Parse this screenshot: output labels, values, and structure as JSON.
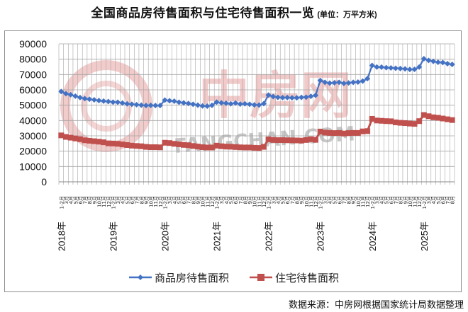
{
  "title": "全国商品房待售面积与住宅待售面积一览",
  "unit_label": "(单位：万平方米)",
  "source": "数据来源：中房网根据国家统计局数据整理",
  "watermark": {
    "cn": "中房网",
    "en": "FANGCHAN.COM"
  },
  "colors": {
    "series1": "#4472C4",
    "series2": "#C0504D",
    "grid": "#A6A6A6",
    "watermark": "#E8A0A0"
  },
  "legend": [
    {
      "label": "商品房待售面积",
      "marker": "diamond",
      "color": "#4472C4"
    },
    {
      "label": "住宅待售面积",
      "marker": "square",
      "color": "#C0504D"
    }
  ],
  "chart_data": {
    "type": "line",
    "title": "全国商品房待售面积与住宅待售面积一览",
    "subtitle": "(单位：万平方米)",
    "xlabel": "",
    "ylabel": "",
    "ylim": [
      0,
      90000
    ],
    "yticks": [
      0,
      10000,
      20000,
      30000,
      40000,
      50000,
      60000,
      70000,
      80000,
      90000
    ],
    "grid": true,
    "legend_position": "bottom",
    "year_labels": [
      "2018年",
      "2019年",
      "2020年",
      "2021年",
      "2022年",
      "2023年",
      "2024年",
      "2025年"
    ],
    "x": [
      "2018年1-2月",
      "3月",
      "4月",
      "5月",
      "6月",
      "7月",
      "8月",
      "9月",
      "10月",
      "11月",
      "12月",
      "2019年1-2月",
      "3月",
      "4月",
      "5月",
      "6月",
      "7月",
      "8月",
      "9月",
      "10月",
      "11月",
      "12月",
      "2020年1-2月",
      "3月",
      "4月",
      "5月",
      "6月",
      "7月",
      "8月",
      "9月",
      "10月",
      "11月",
      "12月",
      "2021年1-2月",
      "3月",
      "4月",
      "5月",
      "6月",
      "7月",
      "8月",
      "9月",
      "10月",
      "11月",
      "12月",
      "2022年1-2月",
      "3月",
      "4月",
      "5月",
      "6月",
      "7月",
      "8月",
      "9月",
      "10月",
      "11月",
      "12月",
      "2023年1-2月",
      "3月",
      "4月",
      "5月",
      "6月",
      "7月",
      "8月",
      "9月",
      "10月",
      "11月",
      "12月",
      "2024年1-2月",
      "3月",
      "4月",
      "5月",
      "6月",
      "7月",
      "8月",
      "9月",
      "10月",
      "11月",
      "12月",
      "2025年1-2月",
      "3月",
      "4月",
      "5月",
      "6月",
      "7月",
      "8月"
    ],
    "series": [
      {
        "name": "商品房待售面积",
        "values": [
          58900,
          57500,
          56800,
          55900,
          55000,
          54300,
          53900,
          53500,
          53000,
          52700,
          52400,
          52000,
          51900,
          51400,
          50900,
          50600,
          50300,
          50000,
          49800,
          49900,
          49800,
          49800,
          53300,
          52900,
          52600,
          51900,
          51500,
          51100,
          50600,
          50000,
          49500,
          49400,
          49900,
          52000,
          51500,
          51300,
          50900,
          51400,
          50700,
          50900,
          50600,
          50200,
          50100,
          51000,
          56600,
          55600,
          55100,
          54900,
          55000,
          54800,
          54800,
          55100,
          55200,
          55800,
          56400,
          66100,
          64900,
          64400,
          64600,
          64900,
          64200,
          64500,
          64900,
          65100,
          65700,
          67300,
          75900,
          74900,
          74800,
          74500,
          74300,
          74100,
          73900,
          73700,
          73300,
          73400,
          74900,
          80300,
          79200,
          78600,
          78000,
          77800,
          77100,
          76600
        ]
      },
      {
        "name": "住宅待售面积",
        "values": [
          30300,
          29300,
          28800,
          28300,
          27800,
          27100,
          26800,
          26500,
          26200,
          25800,
          25100,
          25000,
          24800,
          24400,
          24000,
          23600,
          23400,
          23200,
          22800,
          22600,
          22600,
          22500,
          25500,
          25300,
          24800,
          24500,
          24100,
          23900,
          23400,
          23000,
          22600,
          22400,
          22400,
          23600,
          23200,
          23000,
          22900,
          22700,
          22500,
          22400,
          22400,
          22200,
          22100,
          22800,
          27700,
          27300,
          27200,
          27200,
          27100,
          27100,
          27000,
          26900,
          27300,
          27800,
          27400,
          32800,
          32100,
          31900,
          31800,
          31900,
          31500,
          31800,
          31900,
          31900,
          32900,
          33100,
          41100,
          40000,
          39800,
          39600,
          39500,
          38800,
          38500,
          38300,
          38000,
          37800,
          39600,
          43600,
          42800,
          42100,
          41800,
          41300,
          40800,
          40300
        ]
      }
    ]
  }
}
